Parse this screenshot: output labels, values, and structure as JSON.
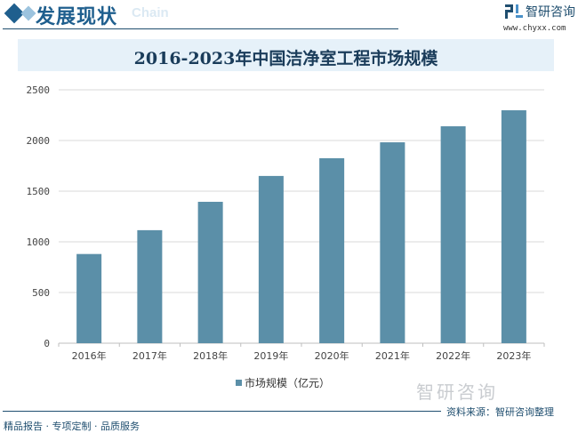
{
  "header": {
    "section_title": "发展现状",
    "ghost_text": "Chain",
    "logo_name": "智研咨询",
    "logo_url": "www.chyxx.com"
  },
  "chart_data": {
    "type": "bar",
    "title": "2016-2023年中国洁净室工程市场规模",
    "categories": [
      "2016年",
      "2017年",
      "2018年",
      "2019年",
      "2020年",
      "2021年",
      "2022年",
      "2023年"
    ],
    "series": [
      {
        "name": "市场规模（亿元）",
        "values": [
          880,
          1115,
          1395,
          1650,
          1825,
          1982,
          2140,
          2298
        ],
        "color": "#5b8fa8"
      }
    ],
    "yticks": [
      0,
      500,
      1000,
      1500,
      2000,
      2500
    ],
    "ylim": [
      0,
      2500
    ],
    "grid": true,
    "legend": "bottom"
  },
  "footer": {
    "watermark_logo": "智研咨询",
    "source": "资料来源：智研咨询整理",
    "slogan": "精品报告 · 专项定制 · 品质服务"
  }
}
